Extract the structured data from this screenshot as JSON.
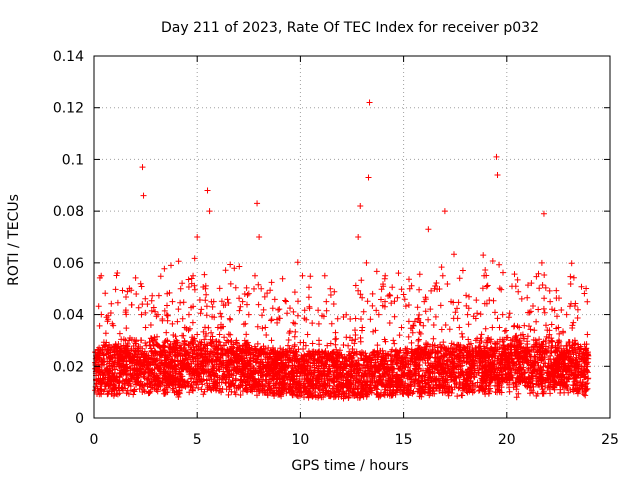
{
  "chart_data": {
    "type": "scatter",
    "title": "Day 211 of 2023, Rate Of TEC Index for receiver p032",
    "xlabel": "GPS time / hours",
    "ylabel": "ROTI / TECUs",
    "xlim": [
      0,
      25
    ],
    "ylim": [
      0,
      0.14
    ],
    "x_ticks": [
      "0",
      "5",
      "10",
      "15",
      "20",
      "25"
    ],
    "y_ticks": [
      "0",
      "0.02",
      "0.04",
      "0.06",
      "0.08",
      "0.1",
      "0.12",
      "0.14"
    ],
    "grid": true,
    "marker": "plus",
    "color": "#ff0000",
    "series": [
      {
        "x": [
          0.1,
          0.3,
          0.5,
          0.8,
          1.0,
          1.2,
          1.5,
          1.7,
          1.9,
          2.1,
          2.3,
          2.35,
          2.4,
          2.5,
          2.7,
          2.9,
          3.1,
          3.3,
          3.5,
          3.8,
          4.0,
          4.2,
          4.4,
          4.6,
          4.8,
          5.0,
          5.2,
          5.4,
          5.5,
          5.6,
          5.8,
          6.0,
          6.3,
          6.6,
          6.9,
          7.2,
          7.5,
          7.8,
          7.9,
          8.0,
          8.1,
          8.3,
          8.6,
          9.0,
          9.4,
          9.8,
          10.1,
          10.5,
          10.9,
          11.3,
          11.7,
          12.1,
          12.5,
          12.8,
          12.9,
          13.0,
          13.2,
          13.3,
          13.35,
          13.5,
          13.8,
          14.1,
          14.5,
          14.9,
          15.3,
          15.7,
          16.0,
          16.2,
          16.5,
          16.9,
          17.0,
          17.3,
          17.7,
          18.1,
          18.5,
          18.9,
          19.3,
          19.5,
          19.55,
          19.8,
          20.2,
          20.6,
          21.0,
          21.4,
          21.7,
          21.8,
          22.1,
          22.5,
          22.9,
          23.3,
          23.7
        ],
        "y": [
          0.015,
          0.018,
          0.022,
          0.014,
          0.02,
          0.025,
          0.018,
          0.03,
          0.022,
          0.026,
          0.04,
          0.097,
          0.086,
          0.035,
          0.028,
          0.03,
          0.04,
          0.025,
          0.033,
          0.045,
          0.03,
          0.05,
          0.035,
          0.04,
          0.055,
          0.07,
          0.042,
          0.05,
          0.088,
          0.08,
          0.045,
          0.035,
          0.028,
          0.038,
          0.03,
          0.045,
          0.04,
          0.055,
          0.083,
          0.07,
          0.05,
          0.035,
          0.03,
          0.025,
          0.028,
          0.022,
          0.055,
          0.025,
          0.03,
          0.028,
          0.033,
          0.02,
          0.03,
          0.07,
          0.082,
          0.035,
          0.06,
          0.093,
          0.122,
          0.048,
          0.04,
          0.045,
          0.03,
          0.035,
          0.05,
          0.038,
          0.045,
          0.073,
          0.05,
          0.055,
          0.08,
          0.045,
          0.035,
          0.04,
          0.03,
          0.055,
          0.035,
          0.101,
          0.094,
          0.04,
          0.03,
          0.035,
          0.025,
          0.03,
          0.06,
          0.079,
          0.045,
          0.035,
          0.04,
          0.03,
          0.025
        ]
      }
    ]
  }
}
